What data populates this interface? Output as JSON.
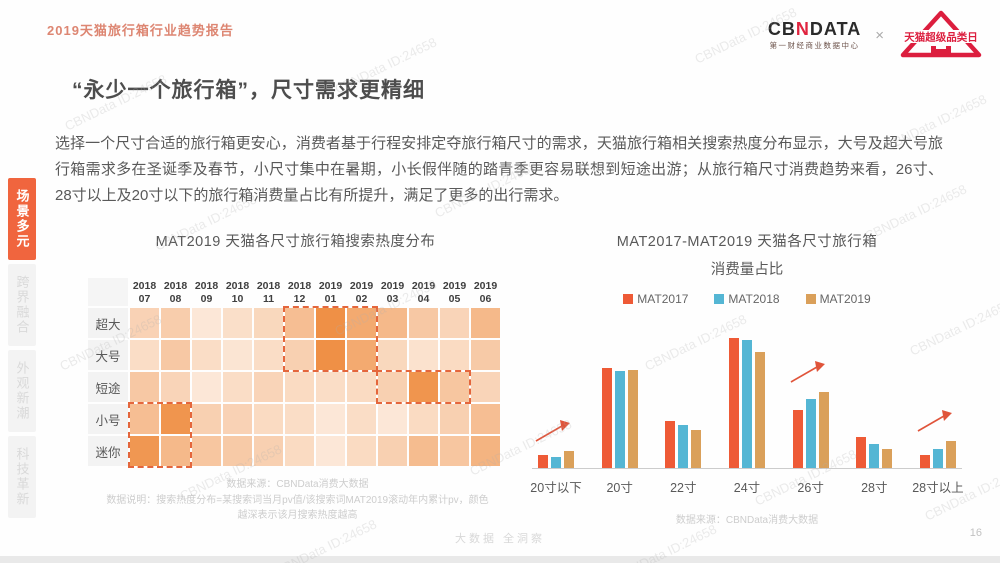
{
  "page": {
    "report_label": "2019天猫旅行箱行业趋势报告",
    "title": "“永少一个旅行箱”，尺寸需求更精细",
    "body": "选择一个尺寸合适的旅行箱更安心，消费者基于行程安排定夺旅行箱尺寸的需求，天猫旅行箱相关搜索热度分布显示，大号及超大号旅行箱需求多在圣诞季及春节，小尺寸集中在暑期，小长假伴随的踏青季更容易联想到短途出游；从旅行箱尺寸消费趋势来看，26寸、28寸以上及20寸以下的旅行箱消费量占比有所提升，满足了更多的出行需求。",
    "watermark": "CBNData ID:24658",
    "footer_slogan": "大数据 全洞察",
    "page_number": "16"
  },
  "logos": {
    "cbndata_c": "CB",
    "cbndata_n": "N",
    "cbndata_rest": "DATA",
    "cbndata_sub": "第一财经商业数据中心",
    "separator": "×",
    "tmall_label": "天猫超级品类日"
  },
  "sidebar": {
    "items": [
      {
        "label": "场景多元",
        "active": true
      },
      {
        "label": "跨界融合",
        "active": false
      },
      {
        "label": "外观新潮",
        "active": false
      },
      {
        "label": "科技革新",
        "active": false
      }
    ]
  },
  "colors": {
    "accent_orange": "#f0653e",
    "tmall_red": "#dc1e3e",
    "heat_min": "#fdf1e8",
    "heat_max": "#ee8b3d",
    "arrow_red": "#e0543a"
  },
  "chart_data": [
    {
      "type": "heatmap",
      "title": "MAT2019 天猫各尺寸旅行箱搜索热度分布",
      "columns": [
        {
          "year": "2018",
          "month": "07"
        },
        {
          "year": "2018",
          "month": "08"
        },
        {
          "year": "2018",
          "month": "09"
        },
        {
          "year": "2018",
          "month": "10"
        },
        {
          "year": "2018",
          "month": "11"
        },
        {
          "year": "2018",
          "month": "12"
        },
        {
          "year": "2019",
          "month": "01"
        },
        {
          "year": "2019",
          "month": "02"
        },
        {
          "year": "2019",
          "month": "03"
        },
        {
          "year": "2019",
          "month": "04"
        },
        {
          "year": "2019",
          "month": "05"
        },
        {
          "year": "2019",
          "month": "06"
        }
      ],
      "rows": [
        "超大",
        "大号",
        "短途",
        "小号",
        "迷你"
      ],
      "values_note": "relative search-heat intensity 0-1, darker = hotter month",
      "values": [
        [
          0.3,
          0.35,
          0.1,
          0.18,
          0.25,
          0.5,
          0.95,
          0.7,
          0.55,
          0.4,
          0.28,
          0.55
        ],
        [
          0.2,
          0.4,
          0.2,
          0.12,
          0.2,
          0.32,
          0.95,
          0.7,
          0.25,
          0.15,
          0.22,
          0.38
        ],
        [
          0.4,
          0.28,
          0.1,
          0.2,
          0.28,
          0.22,
          0.2,
          0.22,
          0.32,
          0.9,
          0.42,
          0.28
        ],
        [
          0.5,
          0.9,
          0.32,
          0.3,
          0.22,
          0.2,
          0.1,
          0.2,
          0.1,
          0.22,
          0.32,
          0.5
        ],
        [
          0.88,
          0.55,
          0.42,
          0.38,
          0.32,
          0.22,
          0.1,
          0.22,
          0.32,
          0.52,
          0.42,
          0.6
        ]
      ],
      "highlight_boxes": [
        {
          "col_start": 5,
          "col_end": 7,
          "row_start": 0,
          "row_end": 1
        },
        {
          "col_start": 8,
          "col_end": 10,
          "row_start": 2,
          "row_end": 2
        },
        {
          "col_start": 0,
          "col_end": 1,
          "row_start": 3,
          "row_end": 4
        }
      ],
      "notes": [
        "数据来源：CBNData消费大数据",
        "数据说明：搜索热度分布=某搜索词当月pv值/该搜索词MAT2019滚动年内累计pv，颜色",
        "越深表示该月搜索热度越高"
      ]
    },
    {
      "type": "bar",
      "title": "MAT2017-MAT2019 天猫各尺寸旅行箱",
      "subtitle": "消费量占比",
      "categories": [
        "20寸以下",
        "20寸",
        "22寸",
        "24寸",
        "26寸",
        "28寸",
        "28寸以上"
      ],
      "series": [
        {
          "name": "MAT2017",
          "color": "#ee5a36",
          "values": [
            3.1,
            23.8,
            11.2,
            31.0,
            13.8,
            7.4,
            3.1
          ]
        },
        {
          "name": "MAT2018",
          "color": "#54b6d4",
          "values": [
            2.6,
            23.1,
            10.2,
            30.5,
            16.5,
            5.7,
            4.5
          ]
        },
        {
          "name": "MAT2019",
          "color": "#daa05a",
          "values": [
            4.0,
            23.4,
            9.1,
            27.7,
            18.1,
            4.5,
            6.4
          ]
        }
      ],
      "growth_arrow_categories": [
        "20寸以下",
        "26寸",
        "28寸以上"
      ],
      "arrows_at": [
        0,
        4,
        6
      ],
      "ylim": [
        0,
        31
      ],
      "legend_position": "top",
      "grid": false,
      "source": "数据来源：CBNData消费大数据"
    }
  ]
}
